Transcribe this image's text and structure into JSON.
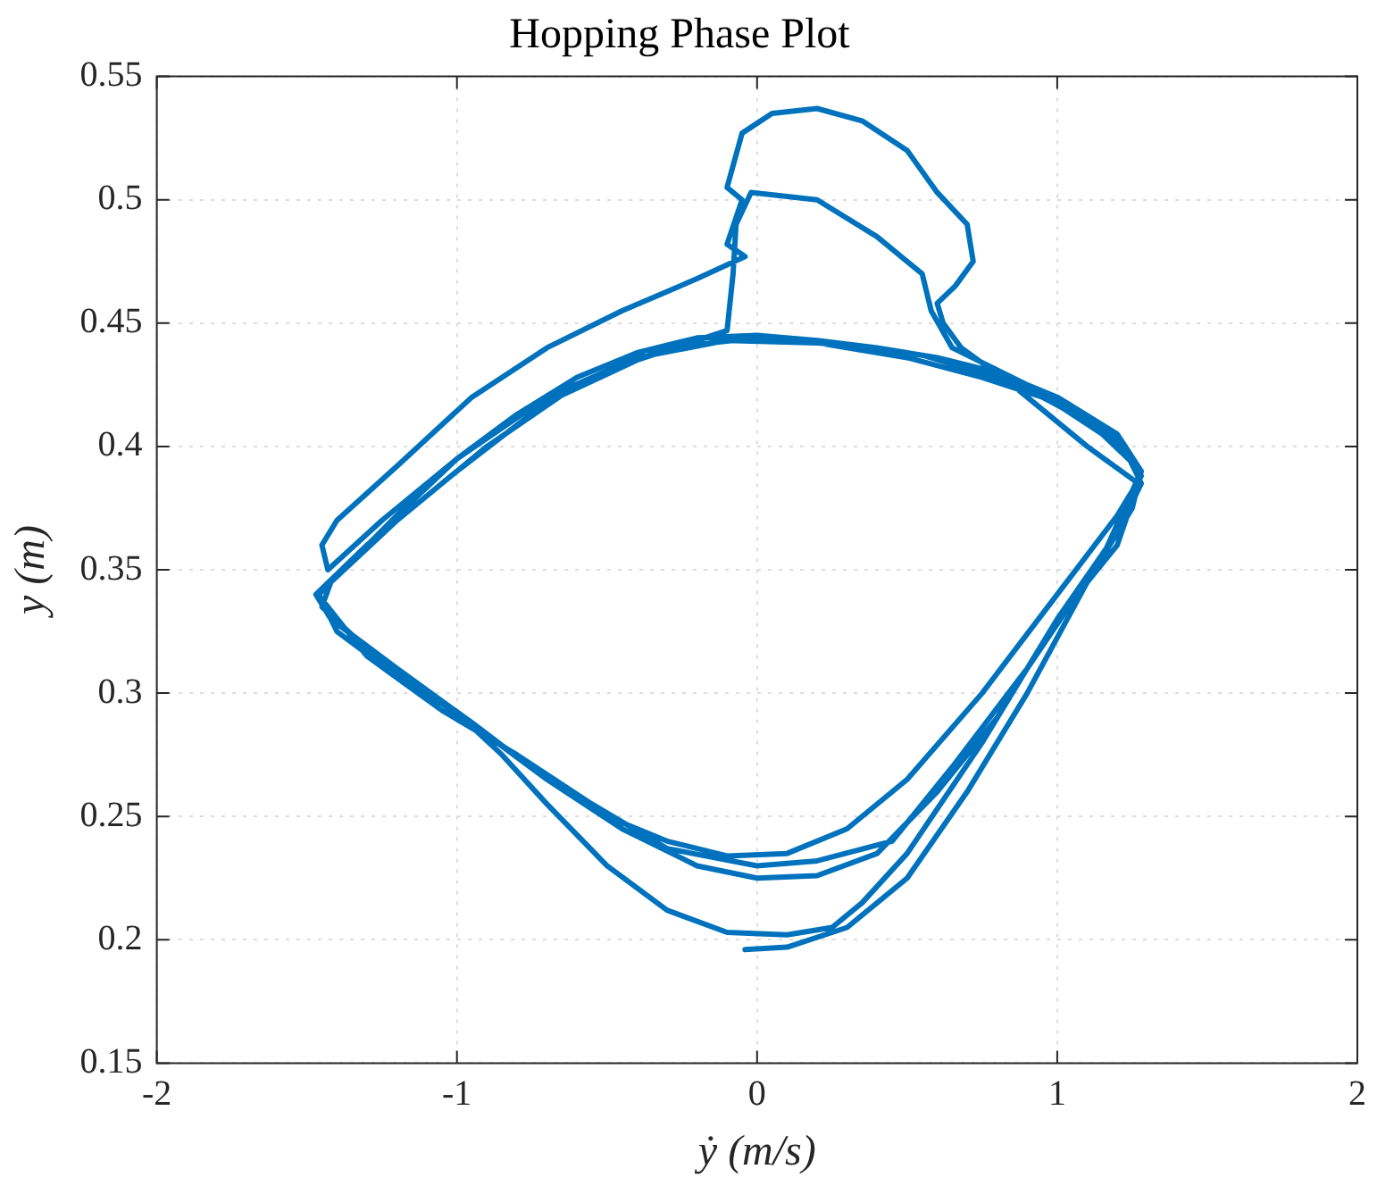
{
  "chart_data": {
    "type": "line",
    "title": "Hopping Phase Plot",
    "xlabel": "ẏ (m/s)",
    "ylabel": "y (m)",
    "xlim": [
      -2,
      2
    ],
    "xticks": [
      -2,
      -1,
      0,
      1,
      2
    ],
    "ylim": [
      0.15,
      0.55
    ],
    "yticks": [
      0.15,
      0.2,
      0.25,
      0.3,
      0.35,
      0.4,
      0.45,
      0.5,
      0.55
    ],
    "grid": true,
    "legend": false,
    "marker": "none",
    "line_style": "solid",
    "series": [
      {
        "color": "#0072bd",
        "x": [
          -0.04,
          0.1,
          0.3,
          0.5,
          0.7,
          0.9,
          1.1,
          1.25,
          1.28,
          1.2,
          1.0,
          0.8,
          0.6,
          0.4,
          0.2,
          0,
          -0.2,
          -0.4,
          -0.6,
          -0.8,
          -1.0,
          -1.2,
          -1.38,
          -1.46,
          -1.4,
          -1.2,
          -1.0,
          -0.85,
          -0.7,
          -0.5,
          -0.3,
          -0.1,
          0.1,
          0.25,
          0.35,
          0.5,
          0.75,
          1.0,
          1.2,
          1.28,
          1.22,
          1.0,
          0.8,
          0.55,
          0.3,
          0,
          -0.3,
          -0.6,
          -0.9,
          -1.2,
          -1.42,
          -1.45,
          -1.3,
          -1.1,
          -0.9,
          -0.7,
          -0.5,
          -0.3,
          -0.1,
          0.1,
          0.3,
          0.5,
          0.75,
          1.0,
          1.2,
          1.28,
          1.18,
          0.95,
          0.75,
          0.5,
          0.2,
          -0.1,
          -0.4,
          -0.7,
          -1.0,
          -1.25,
          -1.43,
          -1.45,
          -1.4,
          -1.2,
          -0.95,
          -0.7,
          -0.45,
          -0.2,
          -0.04,
          -0.1,
          -0.05,
          -0.1,
          -0.05,
          0.05,
          0.2,
          0.35,
          0.5,
          0.6,
          0.7,
          0.72,
          0.66,
          0.6,
          0.62,
          0.68,
          0.85,
          1.1,
          1.27,
          1.2,
          1.0,
          0.8,
          0.6,
          0.4,
          0.2,
          0,
          -0.2,
          -0.45,
          -0.7,
          -0.95,
          -1.2,
          -1.42,
          -1.47,
          -1.3,
          -1.0,
          -0.7,
          -0.4,
          -0.1,
          -0.08,
          -0.07,
          -0.02,
          0.2,
          0.4,
          0.55,
          0.58,
          0.65,
          0.9,
          1.15,
          1.28,
          1.15,
          0.9,
          0.65,
          0.45,
          0.2,
          0,
          -0.3,
          -0.55,
          -0.8,
          -1.05,
          -1.3,
          -1.45
        ],
        "values": [
          0.196,
          0.197,
          0.205,
          0.225,
          0.26,
          0.3,
          0.345,
          0.375,
          0.39,
          0.405,
          0.42,
          0.43,
          0.436,
          0.44,
          0.443,
          0.445,
          0.444,
          0.438,
          0.428,
          0.413,
          0.395,
          0.372,
          0.35,
          0.34,
          0.325,
          0.307,
          0.292,
          0.275,
          0.255,
          0.23,
          0.212,
          0.203,
          0.202,
          0.205,
          0.215,
          0.235,
          0.28,
          0.33,
          0.365,
          0.385,
          0.4,
          0.418,
          0.428,
          0.437,
          0.441,
          0.444,
          0.44,
          0.425,
          0.4,
          0.37,
          0.345,
          0.335,
          0.318,
          0.3,
          0.283,
          0.265,
          0.25,
          0.24,
          0.234,
          0.235,
          0.245,
          0.265,
          0.3,
          0.34,
          0.372,
          0.388,
          0.405,
          0.42,
          0.428,
          0.436,
          0.442,
          0.443,
          0.436,
          0.42,
          0.395,
          0.37,
          0.35,
          0.36,
          0.37,
          0.392,
          0.42,
          0.44,
          0.455,
          0.468,
          0.477,
          0.482,
          0.5,
          0.505,
          0.527,
          0.535,
          0.537,
          0.532,
          0.52,
          0.503,
          0.49,
          0.475,
          0.465,
          0.458,
          0.45,
          0.44,
          0.425,
          0.4,
          0.385,
          0.36,
          0.33,
          0.29,
          0.26,
          0.235,
          0.226,
          0.225,
          0.23,
          0.245,
          0.265,
          0.288,
          0.31,
          0.33,
          0.34,
          0.36,
          0.39,
          0.418,
          0.435,
          0.447,
          0.47,
          0.49,
          0.503,
          0.5,
          0.485,
          0.47,
          0.455,
          0.44,
          0.425,
          0.405,
          0.39,
          0.355,
          0.31,
          0.27,
          0.24,
          0.232,
          0.23,
          0.237,
          0.255,
          0.275,
          0.293,
          0.315,
          0.338
        ]
      }
    ]
  }
}
